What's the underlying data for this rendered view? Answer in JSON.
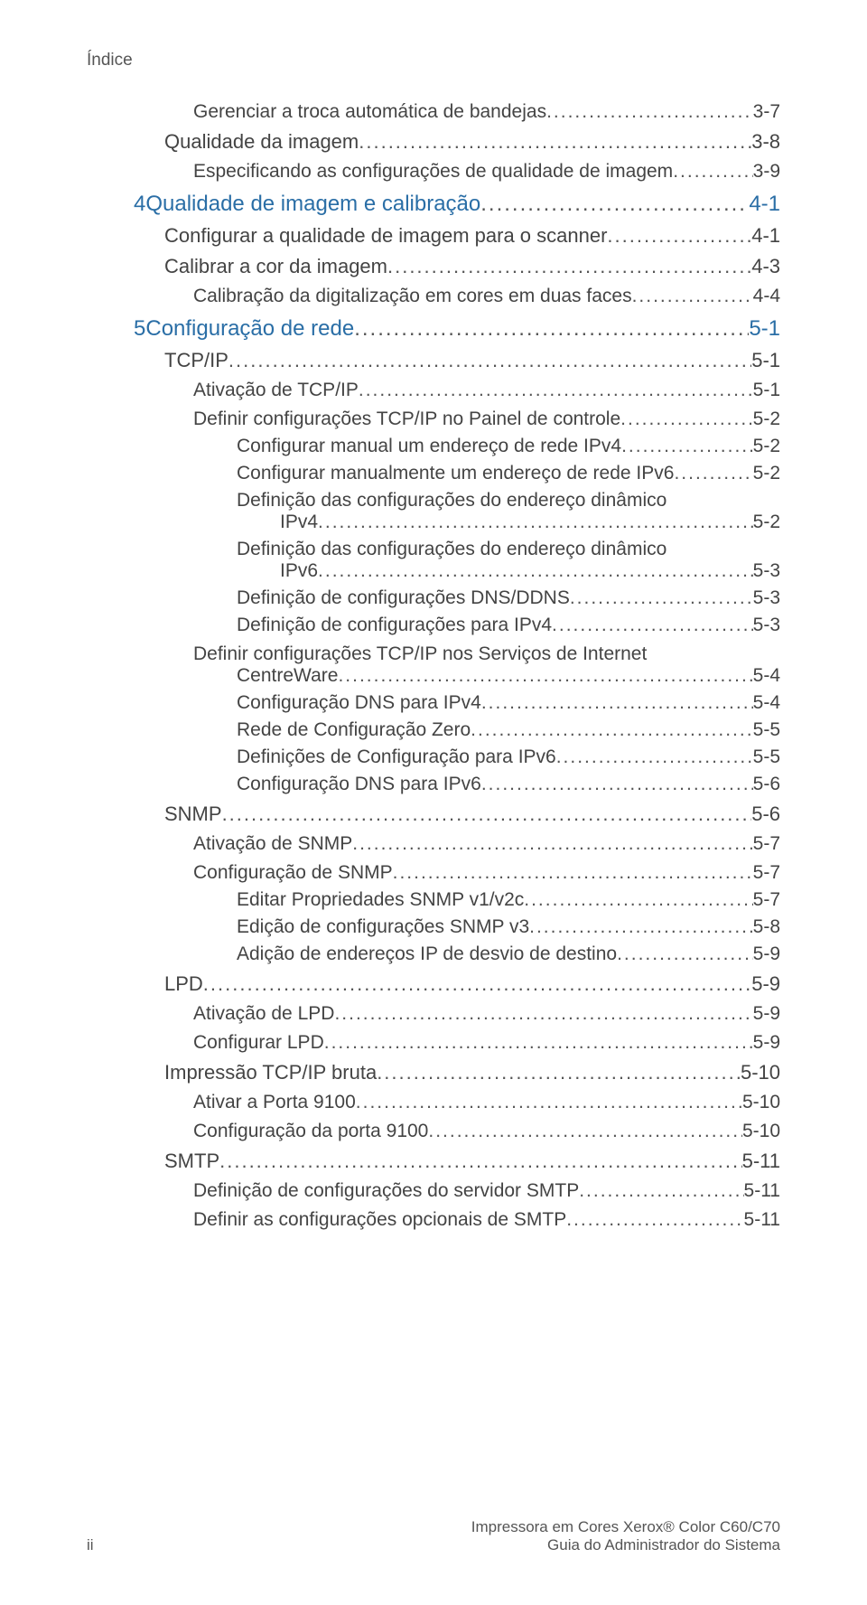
{
  "header": "Índice",
  "colors": {
    "chapter": "#2a6ea6",
    "text": "#444444",
    "footer": "#555555",
    "background": "#ffffff"
  },
  "toc": [
    {
      "level": 2,
      "label": "Gerenciar a troca automática de bandejas",
      "page": "3-7"
    },
    {
      "level": 1,
      "label": "Qualidade da imagem",
      "page": "3-8"
    },
    {
      "level": 2,
      "label": "Especificando as configurações de qualidade de imagem",
      "page": "3-9"
    },
    {
      "level": 0,
      "num": "4",
      "label": "Qualidade de imagem e calibração",
      "page": "4-1"
    },
    {
      "level": 1,
      "label": "Configurar a qualidade de imagem para o scanner",
      "page": "4-1"
    },
    {
      "level": 1,
      "label": "Calibrar a cor da imagem",
      "page": "4-3"
    },
    {
      "level": 2,
      "label": "Calibração da digitalização em cores em duas faces",
      "page": "4-4"
    },
    {
      "level": 0,
      "num": "5",
      "label": "Configuração de rede",
      "page": "5-1"
    },
    {
      "level": 1,
      "label": "TCP/IP",
      "page": "5-1"
    },
    {
      "level": 2,
      "label": "Ativação de TCP/IP",
      "page": "5-1"
    },
    {
      "level": 2,
      "label": "Definir configurações TCP/IP no Painel de controle",
      "page": "5-2"
    },
    {
      "level": 3,
      "label": "Configurar manual um endereço de rede IPv4",
      "page": "5-2"
    },
    {
      "level": 3,
      "label": "Configurar manualmente um endereço de rede IPv6",
      "page": "5-2"
    },
    {
      "level": 3,
      "wrap": true,
      "line1": "Definição das configurações do endereço dinâmico",
      "line2": "IPv4",
      "page": "5-2"
    },
    {
      "level": 3,
      "wrap": true,
      "line1": "Definição das configurações do endereço dinâmico",
      "line2": "IPv6",
      "page": "5-3"
    },
    {
      "level": 3,
      "label": "Definição de configurações DNS/DDNS",
      "page": "5-3"
    },
    {
      "level": 3,
      "label": "Definição de configurações para IPv4",
      "page": "5-3"
    },
    {
      "level": 2,
      "wrap": true,
      "line1": "Definir configurações TCP/IP nos Serviços de Internet",
      "line2": "CentreWare",
      "page": "5-4"
    },
    {
      "level": 3,
      "label": "Configuração DNS para IPv4",
      "page": "5-4"
    },
    {
      "level": 3,
      "label": "Rede de Configuração Zero",
      "page": "5-5"
    },
    {
      "level": 3,
      "label": "Definições de Configuração para IPv6",
      "page": "5-5"
    },
    {
      "level": 3,
      "label": "Configuração DNS para IPv6",
      "page": "5-6"
    },
    {
      "level": 1,
      "label": "SNMP",
      "page": "5-6"
    },
    {
      "level": 2,
      "label": "Ativação de SNMP",
      "page": "5-7"
    },
    {
      "level": 2,
      "label": "Configuração de SNMP",
      "page": "5-7"
    },
    {
      "level": 3,
      "label": "Editar Propriedades SNMP v1/v2c",
      "page": "5-7"
    },
    {
      "level": 3,
      "label": "Edição de configurações SNMP v3",
      "page": "5-8"
    },
    {
      "level": 3,
      "label": "Adição de endereços IP de desvio de destino",
      "page": "5-9"
    },
    {
      "level": 1,
      "label": "LPD",
      "page": "5-9"
    },
    {
      "level": 2,
      "label": "Ativação de LPD",
      "page": "5-9"
    },
    {
      "level": 2,
      "label": "Configurar LPD",
      "page": "5-9"
    },
    {
      "level": 1,
      "label": "Impressão TCP/IP bruta",
      "page": "5-10"
    },
    {
      "level": 2,
      "label": "Ativar a Porta 9100",
      "page": "5-10"
    },
    {
      "level": 2,
      "label": "Configuração da porta 9100",
      "page": "5-10"
    },
    {
      "level": 1,
      "label": "SMTP",
      "page": "5-11"
    },
    {
      "level": 2,
      "label": "Definição de configurações do servidor SMTP",
      "page": "5-11"
    },
    {
      "level": 2,
      "label": "Definir as configurações opcionais de SMTP",
      "page": "5-11"
    }
  ],
  "footer": {
    "page_number": "ii",
    "line1": "Impressora em Cores Xerox® Color C60/C70",
    "line2": "Guia do Administrador do Sistema"
  },
  "leader": "........................................................................................................................................................................................................"
}
